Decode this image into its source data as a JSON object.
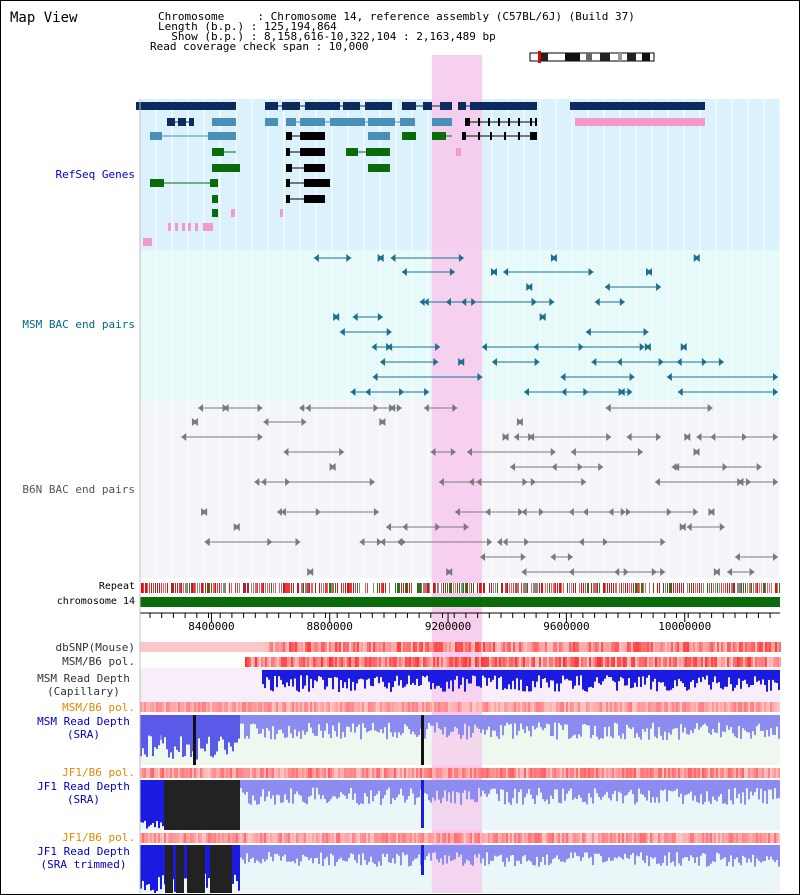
{
  "header": {
    "title": "Map View",
    "info_lines": [
      "Chromosome     : Chromosome 14, reference assembly (C57BL/6J) (Build 37)",
      "Length (b.p.) : 125,194,864",
      "  Show (b.p.) : 8,158,616-10,322,104 : 2,163,489 bp",
      "Read coverage check span : 10,000"
    ]
  },
  "tracks": {
    "refseq": "RefSeq Genes",
    "msm_bac": "MSM BAC end pairs",
    "b6n_bac": "B6N BAC end pairs",
    "repeat": "Repeat",
    "chromosome": "chromosome 14",
    "dbsnp": "dbSNP(Mouse)",
    "msm_b6_pol": "MSM/B6 pol.",
    "msm_depth_cap_1": "MSM Read Depth",
    "msm_depth_cap_2": "(Capillary)",
    "msm_b6_pol_2": "MSM/B6 pol.",
    "msm_depth_sra_1": "MSM Read Depth",
    "msm_depth_sra_2": "(SRA)",
    "jf1_b6_pol": "JF1/B6 pol.",
    "jf1_depth_sra_1": "JF1 Read Depth",
    "jf1_depth_sra_2": "(SRA)",
    "jf1_b6_pol_2": "JF1/B6 pol.",
    "jf1_depth_trim_1": "JF1 Read Depth",
    "jf1_depth_trim_2": "(SRA trimmed)"
  },
  "axis": {
    "ticks": [
      "8400000",
      "8800000",
      "9200000",
      "9600000",
      "10000000"
    ],
    "tick_values": [
      8400000,
      8800000,
      9200000,
      9600000,
      10000000
    ],
    "range": [
      8158616,
      10322104
    ]
  },
  "highlight": {
    "start": 9145000,
    "end": 9315000,
    "color": "#f7c8ec"
  },
  "colors": {
    "refseq_bg": "#dbf1fb",
    "msm_bg": "#e6fafa",
    "b6n_bg": "#f4f5fa",
    "gene_navy": "#0c2a5c",
    "gene_steel": "#4a8fb8",
    "gene_green": "#0a6b0a",
    "gene_pink": "#f39ac8",
    "msm_line": "#1f6e8e",
    "b6n_line": "#7a7a7a",
    "chrom_green": "#0a6b0a",
    "depth_blue": "#1a1ae0",
    "jf1_label": "#e08a00",
    "label_blue": "#0000c0",
    "label_teal": "#006a8a"
  }
}
